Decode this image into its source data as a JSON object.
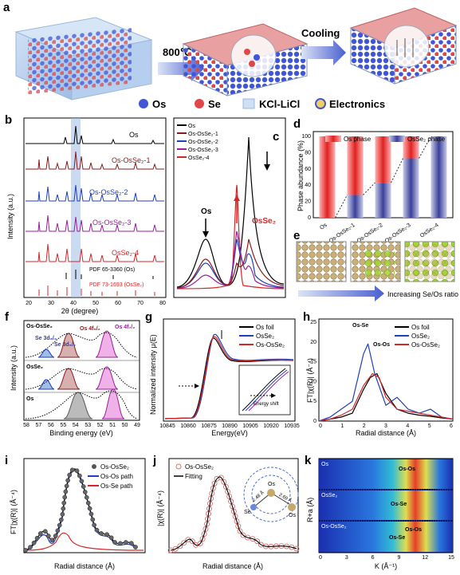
{
  "panels": {
    "a": {
      "label": "a",
      "temp": "800℃",
      "cooling": "Cooling",
      "legend": [
        "Os",
        "Se",
        "KCl-LiCl",
        "Electronics"
      ]
    },
    "b": {
      "label": "b",
      "xlabel": "2θ (degree)",
      "ylabel": "Intensity (a.u.)",
      "xticks": [
        "20",
        "30",
        "40",
        "50",
        "60",
        "70",
        "80"
      ],
      "traces": [
        "Os",
        "Os-OsSe₂-1",
        "Os-OsSe₂-2",
        "Os-OsSe₂-3",
        "OsSe₂-4"
      ],
      "refs": [
        "PDF 65-3360 (Os)",
        "PDF 73-1693 (OsSe₂)"
      ]
    },
    "c": {
      "label": "c",
      "legend": [
        "Os",
        "Os-OsSe₂-1",
        "Os-OsSe₂-2",
        "Os-OsSe₂-3",
        "OsSe₂-4"
      ],
      "ann_os": "Os",
      "ann_osse2": "OsSe₂"
    },
    "d": {
      "label": "d",
      "ylabel": "Phase abundance (%)",
      "legend": [
        "Os phase",
        "OsSe₂ phase"
      ],
      "yticks": [
        "0",
        "20",
        "40",
        "60",
        "80",
        "100"
      ]
    },
    "e": {
      "label": "e",
      "caption": "Increasing Se/Os ratio"
    },
    "f": {
      "label": "f",
      "xlabel": "Binding energy (eV)",
      "ylabel": "Intensity (a.u.)",
      "rows": [
        "Os-OsSe₂",
        "OsSe₂",
        "Os"
      ],
      "peaks": [
        "Se 3d₃/₂",
        "Se 3d₅/₂",
        "Os 4f₅/₂",
        "Os 4f₇/₂"
      ],
      "xticks": [
        "58",
        "57",
        "56",
        "55",
        "54",
        "53",
        "52",
        "51",
        "50",
        "49"
      ]
    },
    "g": {
      "label": "g",
      "xlabel": "Energy(eV)",
      "ylabel": "Normalized intensity μ(E)",
      "legend": [
        "Os foil",
        "OsSe₂",
        "Os-OsSe₂"
      ],
      "inset": "Energy shift",
      "xticks": [
        "10845",
        "10860",
        "10875",
        "10890",
        "10905",
        "10920",
        "10935"
      ]
    },
    "h": {
      "label": "h",
      "xlabel": "Radial distance (Å)",
      "ylabel": "FT|χ(R)| (Å⁻⁴)",
      "legend": [
        "Os foil",
        "OsSe₂",
        "Os-OsSe₂"
      ],
      "ann": [
        "Os-Se",
        "Os-Os"
      ],
      "yticks": [
        "0",
        "5",
        "10",
        "15",
        "20",
        "25"
      ],
      "xticks": [
        "0",
        "1",
        "2",
        "3",
        "4",
        "5",
        "6"
      ]
    },
    "i": {
      "label": "i",
      "xlabel": "Radial distance (Å)",
      "ylabel": "FT|χ(R)| (Å⁻⁴)",
      "legend": [
        "Os-OsSe₂",
        "Os-Os path",
        "Os-Se path"
      ],
      "yticks": [
        "0",
        "2",
        "4",
        "6",
        "8",
        "10",
        "12"
      ],
      "xticks": [
        "0",
        "2",
        "4",
        "6"
      ]
    },
    "j": {
      "label": "j",
      "xlabel": "Radial distance (Å)",
      "ylabel": "|χ(R)| (Å⁻⁴)",
      "legend": [
        "Os-OsSe₂",
        "Fitting"
      ],
      "bond1": "2.48 Å",
      "bond2": "2.69 Å",
      "atoms": [
        "Os",
        "Se",
        "Os"
      ],
      "yticks": [
        "0",
        "4",
        "8",
        "12"
      ],
      "xticks": [
        "0",
        "1",
        "2",
        "3",
        "4",
        "5",
        "6"
      ]
    },
    "k": {
      "label": "k",
      "xlabel": "K (Å⁻¹)",
      "ylabel": "R+a (Å)",
      "rows": [
        "Os",
        "OsSe₂",
        "Os-OsSe₂"
      ],
      "ann": [
        "Os-Os",
        "Os-Se",
        "Os-Os",
        "Os-Se"
      ],
      "xticks": [
        "0",
        "3",
        "6",
        "9",
        "12",
        "15"
      ],
      "yticks": [
        "1",
        "2",
        "3"
      ]
    }
  },
  "colors": {
    "red": "#d62728",
    "blue": "#1f3fbf",
    "purple": "#9b1e9b",
    "maroon": "#8b1a1a"
  },
  "chart_data": [
    {
      "type": "bar",
      "panel": "d",
      "categories": [
        "Os",
        "Os-OsSe₂-1",
        "Os-OsSe₂-2",
        "Os-OsSe₂-3",
        "OsSe₂-4"
      ],
      "series": [
        {
          "name": "Os phase",
          "values": [
            100,
            72,
            57,
            27,
            0
          ]
        },
        {
          "name": "OsSe₂ phase",
          "values": [
            0,
            28,
            43,
            73,
            100
          ]
        }
      ],
      "ylabel": "Phase abundance (%)",
      "ylim": [
        0,
        100
      ]
    },
    {
      "type": "line",
      "panel": "h",
      "ylim": [
        0,
        25
      ],
      "xlim": [
        0,
        6
      ],
      "series": [
        {
          "name": "Os foil",
          "x": [
            0,
            0.5,
            1,
            1.5,
            2,
            2.3,
            2.6,
            3,
            3.5,
            4,
            4.5,
            5,
            5.5,
            6
          ],
          "y": [
            0,
            0.5,
            1,
            2,
            8,
            11,
            12,
            7,
            3,
            2,
            1.5,
            1.2,
            0.8,
            0.5
          ]
        },
        {
          "name": "OsSe₂",
          "x": [
            0,
            0.5,
            1,
            1.5,
            2,
            2.2,
            2.5,
            3,
            3.5,
            4,
            4.5,
            5,
            5.5,
            6
          ],
          "y": [
            0,
            1,
            3,
            5,
            17,
            19.5,
            12,
            4,
            6,
            3,
            2,
            3,
            1,
            0.5
          ]
        },
        {
          "name": "Os-OsSe₂",
          "x": [
            0,
            0.5,
            1,
            1.5,
            2,
            2.4,
            2.7,
            3,
            3.5,
            4,
            4.5,
            5,
            5.5,
            6
          ],
          "y": [
            0,
            0.5,
            1.5,
            3,
            9,
            12,
            11,
            6,
            3,
            2.5,
            2,
            1.5,
            1,
            0.5
          ]
        }
      ]
    }
  ]
}
